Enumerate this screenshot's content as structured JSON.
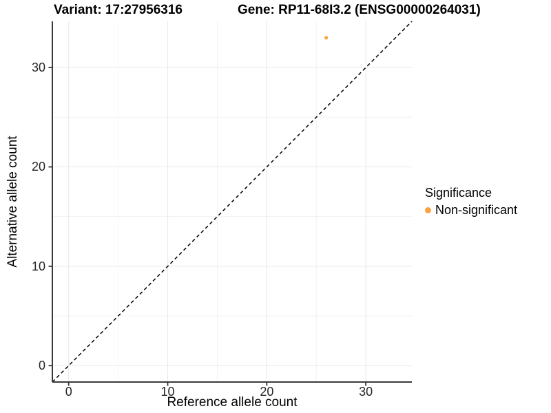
{
  "header": {
    "variant_title": "Variant: 17:27956316",
    "gene_title": "Gene: RP11-68I3.2 (ENSG00000264031)"
  },
  "axes": {
    "x_title": "Reference allele count",
    "y_title": "Alternative allele count"
  },
  "legend": {
    "title": "Significance",
    "items": [
      {
        "label": "Non-significant",
        "color": "#F9A242",
        "marker": "circle-icon"
      }
    ]
  },
  "chart_data": {
    "type": "scatter",
    "title": "Variant: 17:27956316",
    "subtitle": "Gene: RP11-68I3.2 (ENSG00000264031)",
    "xlabel": "Reference allele count",
    "ylabel": "Alternative allele count",
    "xlim": [
      -1.65,
      34.65
    ],
    "ylim": [
      -1.65,
      34.65
    ],
    "x_major_ticks": [
      0,
      10,
      20,
      30
    ],
    "y_major_ticks": [
      0,
      10,
      20,
      30
    ],
    "x_minor_ticks": [
      5,
      15,
      25
    ],
    "y_minor_ticks": [
      5,
      15,
      25
    ],
    "grid": true,
    "legend_position": "right",
    "series": [
      {
        "name": "Non-significant",
        "color": "#F9A242",
        "points": [
          {
            "x": 26,
            "y": 33
          }
        ]
      }
    ],
    "reference_line": {
      "equation": "y = x",
      "style": "dashed",
      "color": "#000000"
    }
  },
  "colors": {
    "point_orange": "#F9A242",
    "axis_line": "#3a3a3a",
    "tick_mark": "#333333",
    "grid_major": "#e7e7e7",
    "grid_minor": "#f2f2f2"
  }
}
